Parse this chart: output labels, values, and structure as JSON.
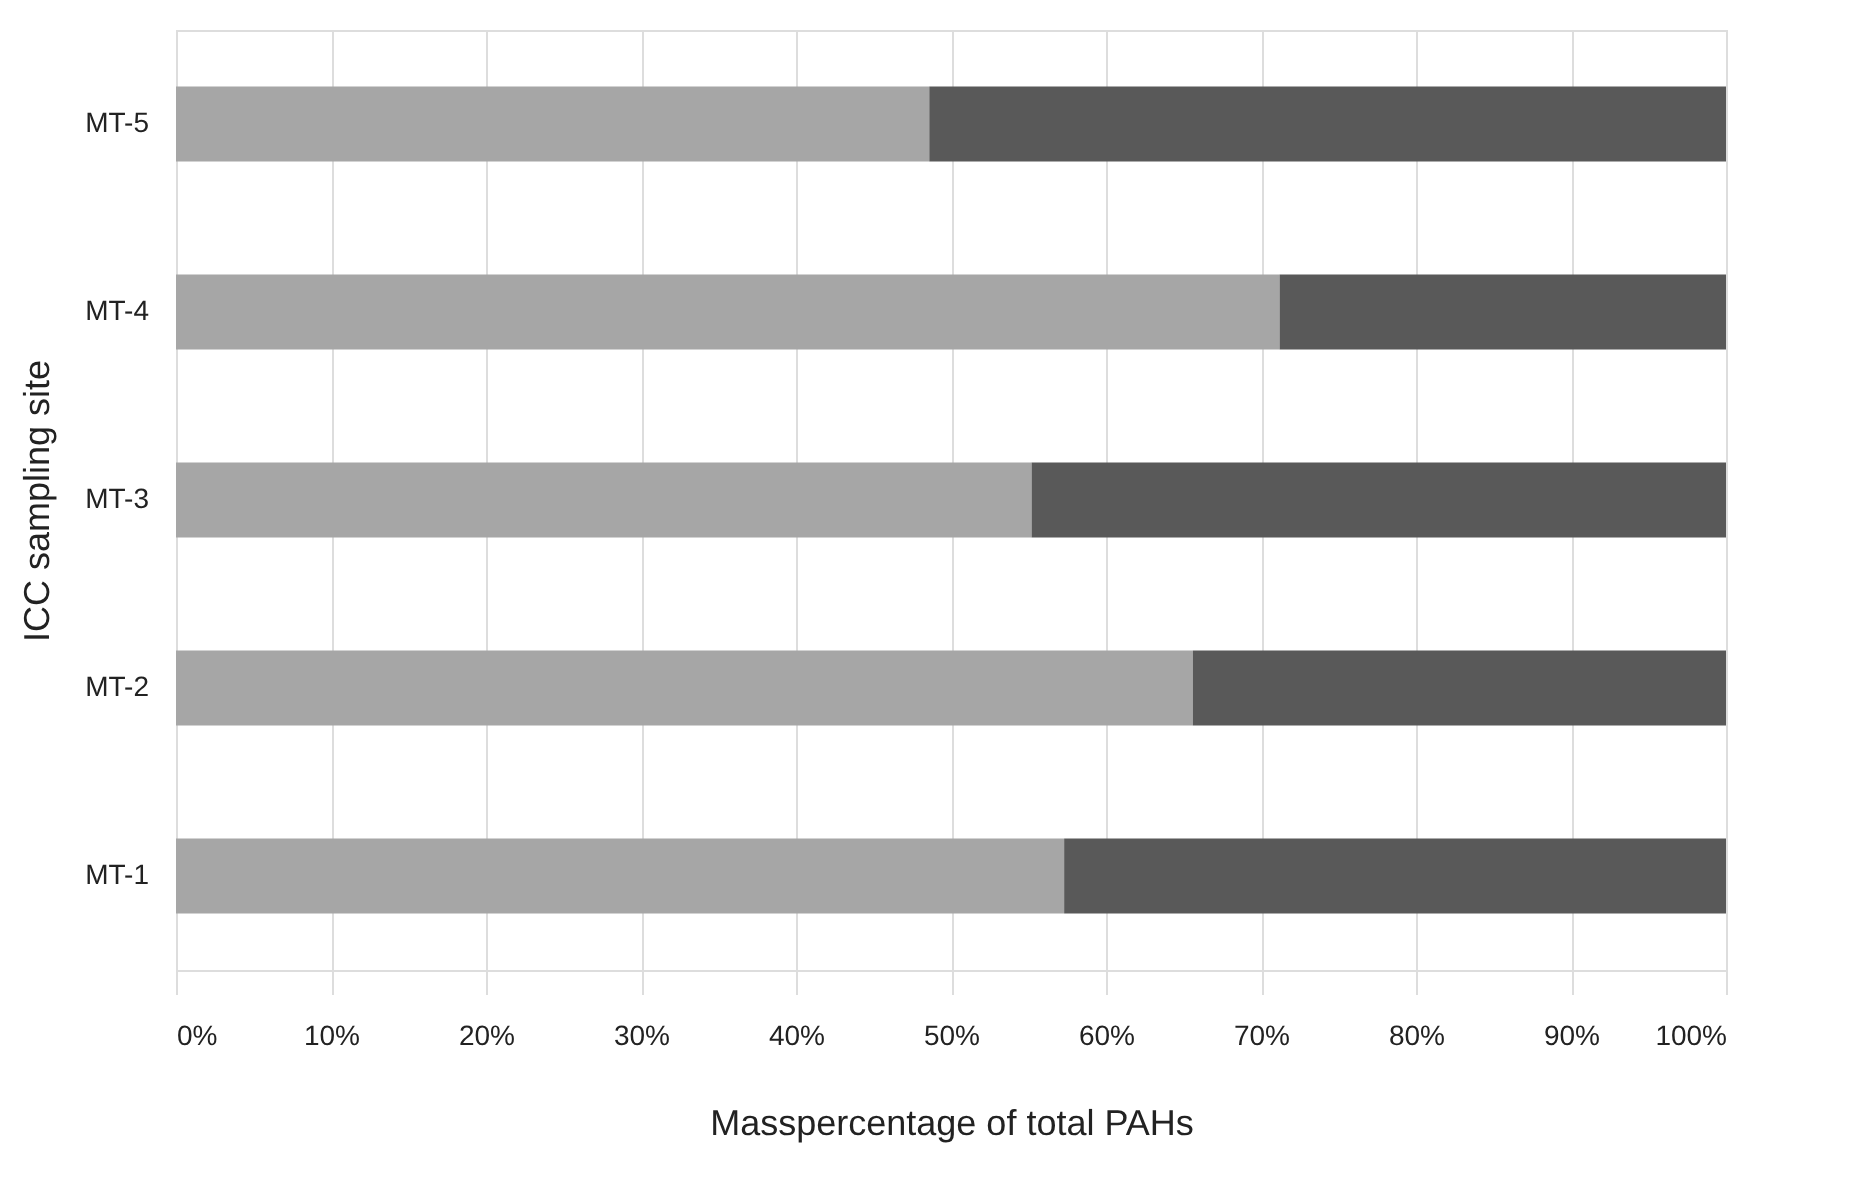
{
  "chart_data": {
    "type": "bar",
    "orientation": "horizontal",
    "stacked": true,
    "xlabel": "Masspercentage of total PAHs",
    "ylabel": "ICC sampling site",
    "categories": [
      "MT-5",
      "MT-4",
      "MT-3",
      "MT-2",
      "MT-1"
    ],
    "series": [
      {
        "color": "#a6a6a6",
        "values": [
          48.6,
          71.2,
          55.2,
          65.6,
          57.3
        ]
      },
      {
        "color": "#595959",
        "values": [
          51.4,
          28.8,
          44.8,
          34.4,
          42.7
        ]
      }
    ],
    "xlim": [
      0,
      100
    ],
    "xticks": [
      {
        "value": 0,
        "label": "0%"
      },
      {
        "value": 10,
        "label": "10%"
      },
      {
        "value": 20,
        "label": "20%"
      },
      {
        "value": 30,
        "label": "30%"
      },
      {
        "value": 40,
        "label": "40%"
      },
      {
        "value": 50,
        "label": "50%"
      },
      {
        "value": 60,
        "label": "60%"
      },
      {
        "value": 70,
        "label": "70%"
      },
      {
        "value": 80,
        "label": "80%"
      },
      {
        "value": 90,
        "label": "90%"
      },
      {
        "value": 100,
        "label": "100%"
      }
    ],
    "grid": "x",
    "legend": false
  }
}
